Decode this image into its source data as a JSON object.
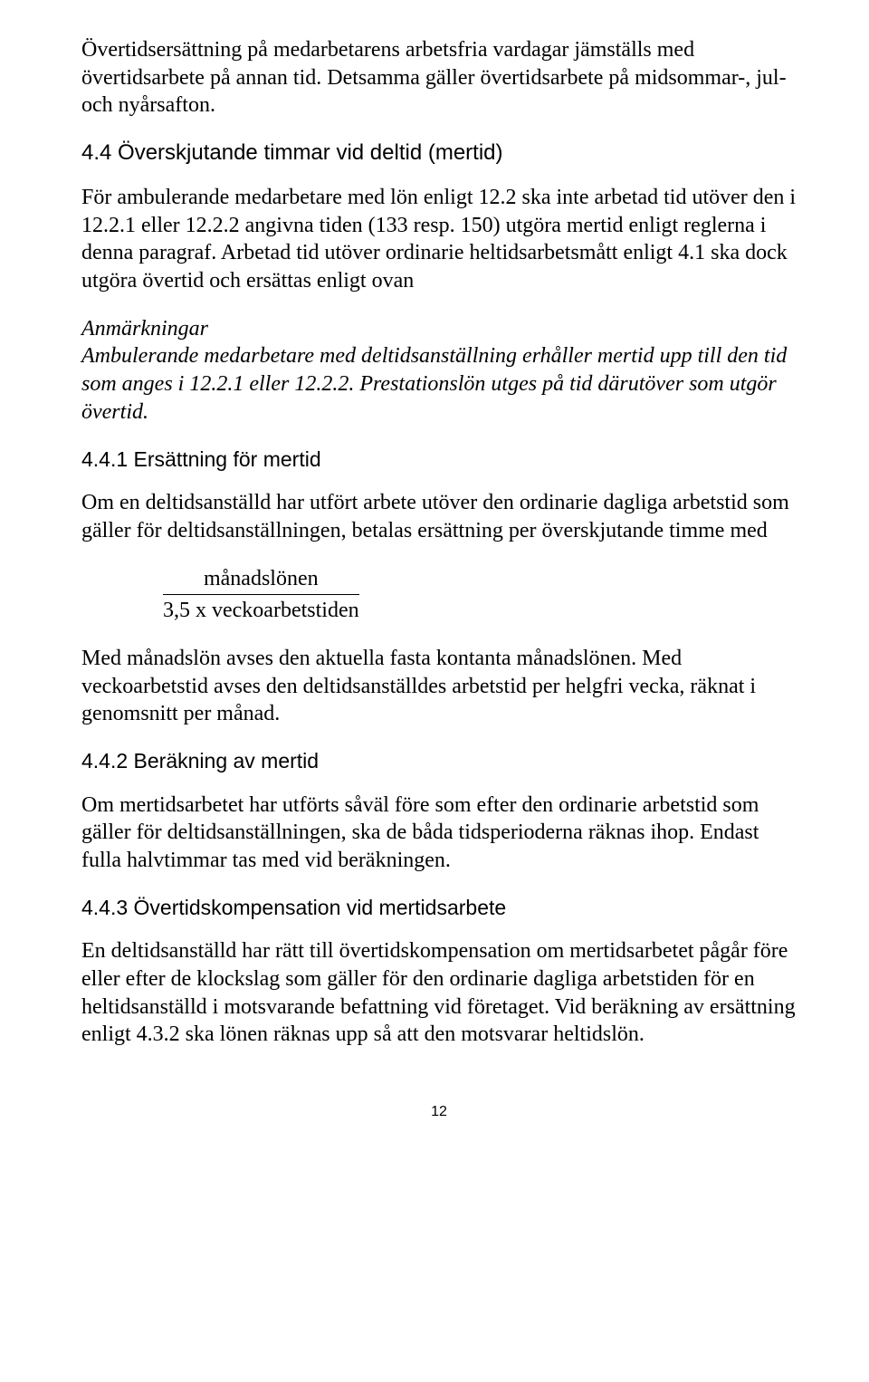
{
  "p1": "Övertidsersättning på medarbetarens arbetsfria vardagar jämställs med övertidsarbete på annan tid. Detsamma gäller övertidsarbete på midsommar-, jul- och nyårsafton.",
  "h44": "4.4 Överskjutande timmar vid deltid (mertid)",
  "p2": "För ambulerande medarbetare med lön enligt 12.2 ska inte arbetad tid utöver den i 12.2.1 eller 12.2.2 angivna tiden (133 resp. 150) utgöra mertid enligt reglerna i denna paragraf. Arbetad tid utöver ordinarie heltidsarbetsmått enligt 4.1 ska dock utgöra övertid och ersättas enligt ovan",
  "anm_title": "Anmärkningar",
  "anm_body": "Ambulerande medarbetare med deltidsanställning erhåller mertid upp till den tid som anges i 12.2.1 eller 12.2.2. Prestationslön utges på tid därutöver som utgör övertid.",
  "h441": "4.4.1 Ersättning för mertid",
  "p3": "Om en deltidsanställd har utfört arbete utöver den ordinarie dagliga arbetstid som gäller för deltidsanställningen, betalas ersättning per överskjutande timme med",
  "formula_top": "månadslönen",
  "formula_bottom": "3,5 x veckoarbetstiden",
  "p4": "Med månadslön avses den aktuella fasta kontanta månadslönen. Med veckoarbetstid avses den deltidsanställdes arbetstid per helgfri vecka, räknat i genomsnitt per månad.",
  "h442": "4.4.2 Beräkning av mertid",
  "p5": "Om mertidsarbetet har utförts såväl före som efter den ordinarie arbetstid som gäller för deltidsanställningen, ska de båda tidsperioderna räknas ihop. Endast fulla halvtimmar tas med vid beräkningen.",
  "h443": "4.4.3 Övertidskompensation vid mertidsarbete",
  "p6": "En deltidsanställd har rätt till övertidskompensation om mertidsarbetet pågår före eller efter de klockslag som gäller för den ordinarie dagliga arbetstiden för en heltidsanställd i motsvarande befattning vid företaget. Vid beräkning av ersättning enligt 4.3.2 ska lönen räknas upp så att den motsvarar heltidslön.",
  "pagenum": "12"
}
